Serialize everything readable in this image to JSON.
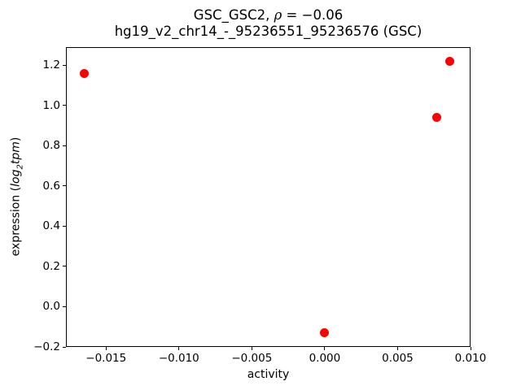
{
  "title": {
    "line1_prefix": "GSC_GSC2, ",
    "line1_rho": "ρ",
    "line1_suffix": " = −0.06",
    "line2": "hg19_v2_chr14_-_95236551_95236576 (GSC)"
  },
  "axes": {
    "ylabel_prefix": "expression (",
    "ylabel_log": "log",
    "ylabel_sub": "2",
    "ylabel_tpm": "tpm",
    "ylabel_suffix": ")"
  },
  "chart_data": {
    "type": "scatter",
    "title": "GSC_GSC2, ρ = −0.06",
    "subtitle": "hg19_v2_chr14_-_95236551_95236576 (GSC)",
    "xlabel": "activity",
    "ylabel": "expression (log2tpm)",
    "marker_color": "#ff0000",
    "marker_shape": "circle",
    "grid": false,
    "legend_position": "none",
    "xlim": [
      -0.01775,
      0.01
    ],
    "ylim": [
      -0.2,
      1.29
    ],
    "xticks": {
      "values": [
        -0.015,
        -0.01,
        -0.005,
        0.0,
        0.005,
        0.01
      ],
      "labels": [
        "−0.015",
        "−0.010",
        "−0.005",
        "0.000",
        "0.005",
        "0.010"
      ]
    },
    "yticks": {
      "values": [
        -0.2,
        0.0,
        0.2,
        0.4,
        0.6,
        0.8,
        1.0,
        1.2
      ],
      "labels": [
        "−0.2",
        "0.0",
        "0.2",
        "0.4",
        "0.6",
        "0.8",
        "1.0",
        "1.2"
      ]
    },
    "points": [
      {
        "x": -0.0165,
        "y": 1.16
      },
      {
        "x": 0.0086,
        "y": 1.22
      },
      {
        "x": 0.0077,
        "y": 0.94
      },
      {
        "x": 0.0,
        "y": -0.13
      }
    ]
  }
}
